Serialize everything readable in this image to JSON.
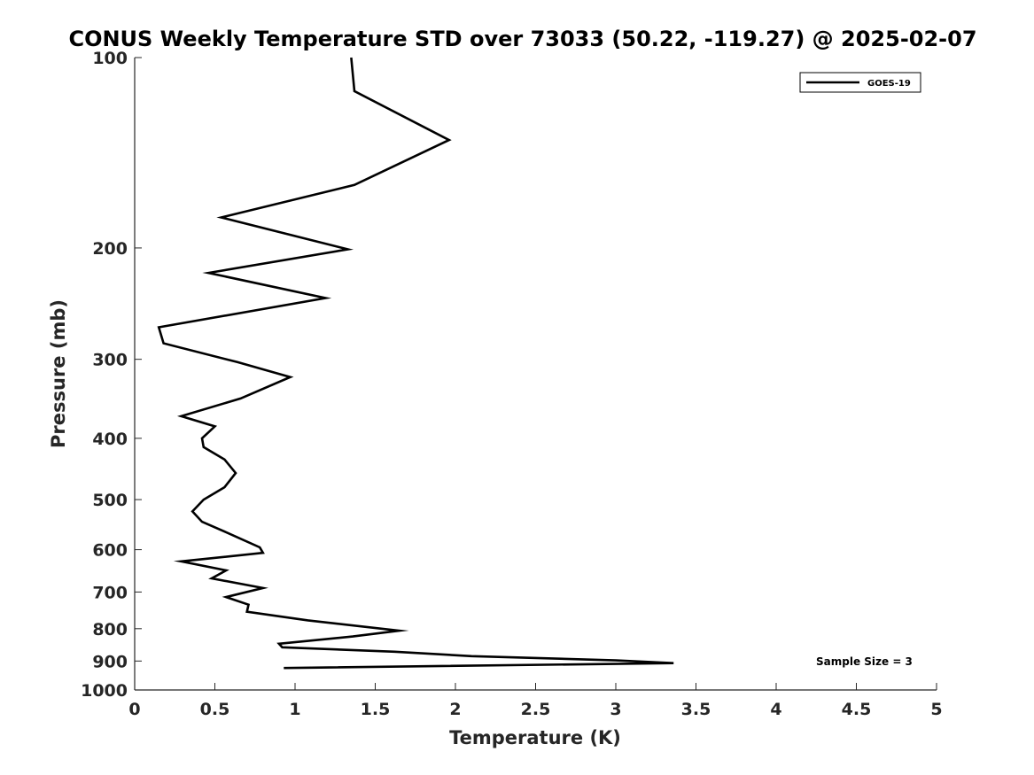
{
  "chart_data": {
    "type": "line",
    "title": "CONUS Weekly Temperature STD over 73033 (50.22, -119.27) @ 2025-02-07",
    "xlabel": "Temperature (K)",
    "ylabel": "Pressure (mb)",
    "xlim": [
      0,
      5
    ],
    "ylim": [
      100,
      1000
    ],
    "y_scale": "log",
    "y_reversed": true,
    "x_ticks": [
      0,
      0.5,
      1,
      1.5,
      2,
      2.5,
      3,
      3.5,
      4,
      4.5,
      5
    ],
    "x_tick_labels": [
      "0",
      "0.5",
      "1",
      "1.5",
      "2",
      "2.5",
      "3",
      "3.5",
      "4",
      "4.5",
      "5"
    ],
    "y_ticks": [
      100,
      200,
      300,
      400,
      500,
      600,
      700,
      800,
      900,
      1000
    ],
    "y_tick_labels": [
      "100",
      "200",
      "300",
      "400",
      "500",
      "600",
      "700",
      "800",
      "900",
      "1000"
    ],
    "grid": false,
    "legend_position": "top-right",
    "annotation": "Sample Size = 3",
    "series": [
      {
        "name": "GOES-19",
        "color": "#000000",
        "x": [
          1.35,
          1.37,
          1.96,
          1.37,
          0.54,
          1.33,
          0.46,
          1.19,
          0.15,
          0.18,
          0.64,
          0.97,
          0.66,
          0.29,
          0.5,
          0.42,
          0.43,
          0.56,
          0.63,
          0.56,
          0.43,
          0.36,
          0.42,
          0.57,
          0.78,
          0.8,
          0.29,
          0.57,
          0.48,
          0.8,
          0.57,
          0.71,
          0.7,
          1.08,
          1.65,
          1.36,
          0.9,
          0.92,
          1.62,
          2.1,
          3.0,
          3.36,
          0.93
        ],
        "y": [
          100,
          113,
          135,
          159,
          179,
          201,
          219,
          240,
          267,
          283,
          303,
          320,
          346,
          369,
          383,
          400,
          413,
          432,
          454,
          478,
          500,
          522,
          542,
          563,
          595,
          607,
          626,
          647,
          666,
          690,
          713,
          733,
          752,
          776,
          806,
          823,
          845,
          856,
          870,
          884,
          898,
          907,
          923
        ]
      }
    ]
  }
}
